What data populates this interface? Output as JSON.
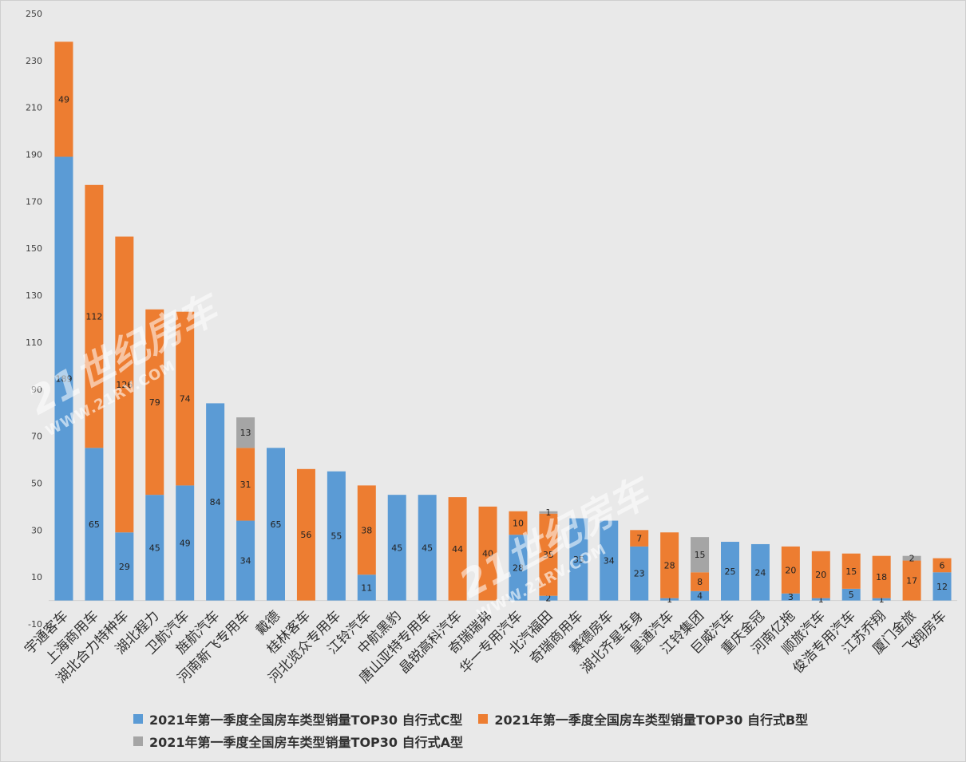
{
  "chart_data": {
    "type": "bar",
    "stacked": true,
    "categories": [
      "宇通客车",
      "上海商用车",
      "湖北合力特种车",
      "湖北程力",
      "卫航汽车",
      "旌航汽车",
      "河南新飞专用车",
      "戴德",
      "桂林客车",
      "河北览众专用车",
      "江铃汽车",
      "中航黑豹",
      "唐山亚特专用车",
      "晶锐高科汽车",
      "奇瑞瑞弗",
      "华一专用汽车",
      "北汽福田",
      "奇瑞商用车",
      "赛德房车",
      "湖北齐星车身",
      "星通汽车",
      "江铃集团",
      "巨威汽车",
      "重庆金冠",
      "河南亿拖",
      "顺旅汽车",
      "俊浩专用汽车",
      "江苏乔翔",
      "厦门金旅",
      "飞翔房车"
    ],
    "series": [
      {
        "name": "2021年第一季度全国房车类型销量TOP30 自行式C型",
        "color": "#5b9bd5",
        "values": [
          189,
          65,
          29,
          45,
          49,
          84,
          34,
          65,
          0,
          55,
          11,
          45,
          45,
          0,
          0,
          28,
          2,
          35,
          34,
          23,
          1,
          4,
          25,
          24,
          3,
          1,
          5,
          1,
          0,
          12
        ]
      },
      {
        "name": "2021年第一季度全国房车类型销量TOP30 自行式B型",
        "color": "#ed7d31",
        "values": [
          49,
          112,
          126,
          79,
          74,
          0,
          31,
          0,
          56,
          0,
          38,
          0,
          0,
          44,
          40,
          10,
          35,
          0,
          0,
          7,
          28,
          8,
          0,
          0,
          20,
          20,
          15,
          18,
          17,
          6
        ]
      },
      {
        "name": "2021年第一季度全国房车类型销量TOP30 自行式A型",
        "color": "#a5a5a5",
        "values": [
          0,
          0,
          0,
          0,
          0,
          0,
          13,
          0,
          0,
          0,
          0,
          0,
          0,
          0,
          0,
          0,
          1,
          0,
          0,
          0,
          0,
          15,
          0,
          0,
          0,
          0,
          0,
          0,
          2,
          0
        ]
      }
    ],
    "ylim": [
      -10,
      250
    ],
    "yticks": [
      -10,
      10,
      30,
      50,
      70,
      90,
      110,
      130,
      150,
      170,
      190,
      210,
      230,
      250
    ],
    "grid": false,
    "legend_position": "bottom"
  },
  "watermark": {
    "text1": "21世纪房车",
    "text2": "WWW.21RV.COM",
    "logo": "21RV"
  }
}
